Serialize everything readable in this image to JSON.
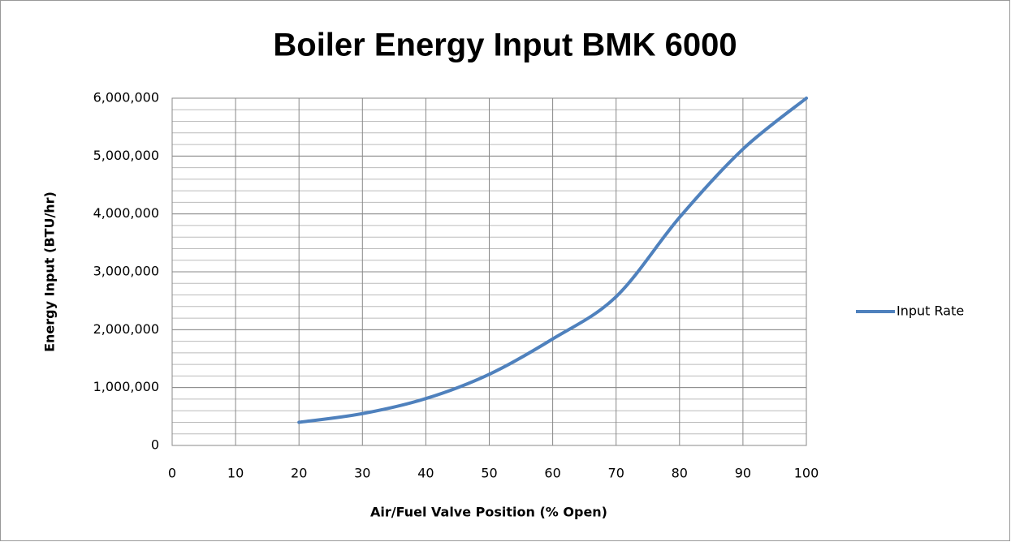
{
  "chart_data": {
    "type": "line",
    "title": "Boiler Energy Input BMK 6000",
    "x_label": "Air/Fuel Valve Position (% Open)",
    "y_label": "Energy Input (BTU/hr)",
    "x": [
      20,
      30,
      40,
      50,
      60,
      70,
      80,
      90,
      100
    ],
    "series": [
      {
        "name": "Input Rate",
        "color": "#4f81bd",
        "values": [
          400000,
          550000,
          810000,
          1230000,
          1840000,
          2570000,
          3940000,
          5120000,
          6000000
        ]
      }
    ],
    "xlim": [
      0,
      100
    ],
    "xticks": [
      0,
      10,
      20,
      30,
      40,
      50,
      60,
      70,
      80,
      90,
      100
    ],
    "ylim": [
      0,
      6000000
    ],
    "yticks": [
      0,
      {
        "value": 1000000,
        "label": "1,000,000"
      },
      {
        "value": 2000000,
        "label": "2,000,000"
      },
      {
        "value": 3000000,
        "label": "3,000,000"
      },
      {
        "value": 4000000,
        "label": "4,000,000"
      },
      {
        "value": 5000000,
        "label": "5,000,000"
      },
      {
        "value": 6000000,
        "label": "6,000,000"
      }
    ],
    "y_minor_step": 200000,
    "grid": true,
    "smooth": true,
    "legend": "right"
  }
}
